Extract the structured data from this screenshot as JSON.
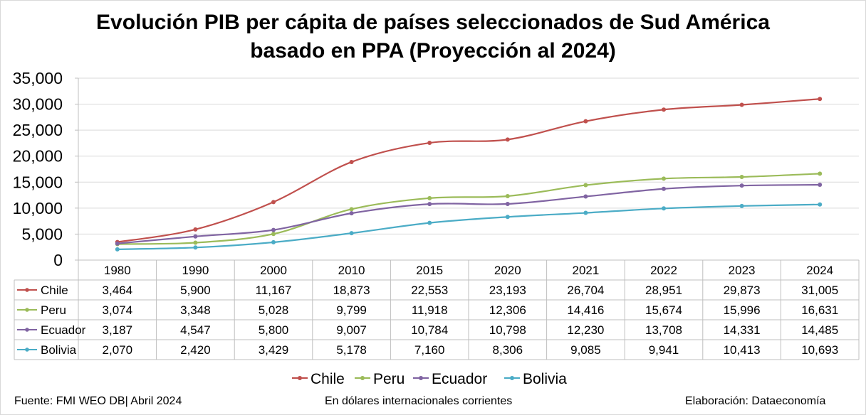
{
  "chart_data": {
    "type": "line",
    "title_line1": "Evolución PIB per cápita de países seleccionados de Sud América",
    "title_line2": "basado en PPA (Proyección al 2024)",
    "categories": [
      "1980",
      "1990",
      "2000",
      "2010",
      "2015",
      "2020",
      "2021",
      "2022",
      "2023",
      "2024"
    ],
    "ylim": [
      0,
      35000
    ],
    "yticks": [
      "0",
      "5,000",
      "10,000",
      "15,000",
      "20,000",
      "25,000",
      "30,000",
      "35,000"
    ],
    "grid": "horizontal",
    "legend_position": "bottom",
    "series": [
      {
        "name": "Chile",
        "color": "#c0504d",
        "values": [
          3464,
          5900,
          11167,
          18873,
          22553,
          23193,
          26704,
          28951,
          29873,
          31005
        ],
        "labels": [
          "3,464",
          "5,900",
          "11,167",
          "18,873",
          "22,553",
          "23,193",
          "26,704",
          "28,951",
          "29,873",
          "31,005"
        ]
      },
      {
        "name": "Peru",
        "color": "#9bbb59",
        "values": [
          3074,
          3348,
          5028,
          9799,
          11918,
          12306,
          14416,
          15674,
          15996,
          16631
        ],
        "labels": [
          "3,074",
          "3,348",
          "5,028",
          "9,799",
          "11,918",
          "12,306",
          "14,416",
          "15,674",
          "15,996",
          "16,631"
        ]
      },
      {
        "name": "Ecuador",
        "color": "#8064a2",
        "values": [
          3187,
          4547,
          5800,
          9007,
          10784,
          10798,
          12230,
          13708,
          14331,
          14485
        ],
        "labels": [
          "3,187",
          "4,547",
          "5,800",
          "9,007",
          "10,784",
          "10,798",
          "12,230",
          "13,708",
          "14,331",
          "14,485"
        ]
      },
      {
        "name": "Bolivia",
        "color": "#4bacc6",
        "values": [
          2070,
          2420,
          3429,
          5178,
          7160,
          8306,
          9085,
          9941,
          10413,
          10693
        ],
        "labels": [
          "2,070",
          "2,420",
          "3,429",
          "5,178",
          "7,160",
          "8,306",
          "9,085",
          "9,941",
          "10,413",
          "10,693"
        ]
      }
    ]
  },
  "footer": {
    "source": "Fuente: FMI WEO DB| Abril 2024",
    "units": "En dólares internacionales corrientes",
    "credit": "Elaboración: Dataeconomía"
  }
}
